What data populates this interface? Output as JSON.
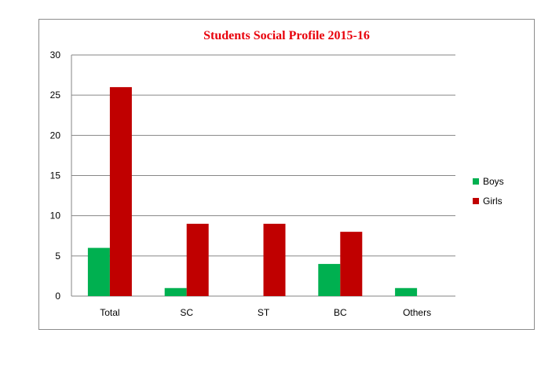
{
  "chart_data": {
    "type": "bar",
    "title": "Students Social Profile 2015-16",
    "categories": [
      "Total",
      "SC",
      "ST",
      "BC",
      "Others"
    ],
    "series": [
      {
        "name": "Boys",
        "color": "#00b050",
        "values": [
          6,
          1,
          0,
          4,
          1
        ]
      },
      {
        "name": "Girls",
        "color": "#c00000",
        "values": [
          26,
          9,
          9,
          8,
          0
        ]
      }
    ],
    "ylim": [
      0,
      30
    ],
    "yticks": [
      "0",
      "5",
      "10",
      "15",
      "20",
      "25",
      "30"
    ],
    "xlabel": "",
    "ylabel": "",
    "grid": true,
    "legend_position": "right"
  }
}
